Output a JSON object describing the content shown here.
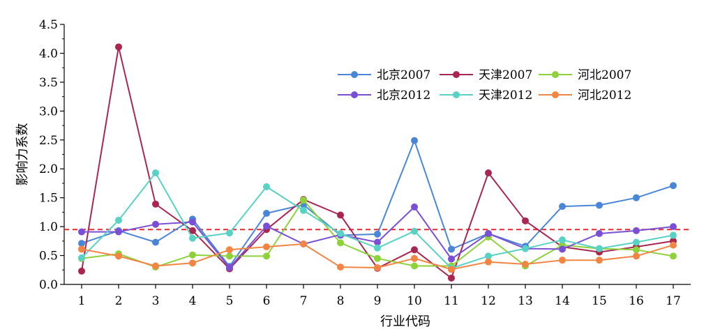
{
  "chart_data": {
    "type": "line",
    "xlabel": "行业代码",
    "ylabel": "影响力系数",
    "ylim": [
      0,
      4.5
    ],
    "y_ticks": [
      "0.0",
      "0.5",
      "1.0",
      "1.5",
      "2.0",
      "2.5",
      "3.0",
      "3.5",
      "4.0",
      "4.5"
    ],
    "x": [
      1,
      2,
      3,
      4,
      5,
      6,
      7,
      8,
      9,
      10,
      11,
      12,
      13,
      14,
      15,
      16,
      17
    ],
    "x_ticks": [
      "1",
      "2",
      "3",
      "4",
      "5",
      "6",
      "7",
      "8",
      "9",
      "10",
      "11",
      "12",
      "13",
      "14",
      "15",
      "16",
      "17"
    ],
    "reference_line": {
      "y": 0.95,
      "color": "#e8282b",
      "style": "dashed"
    },
    "legend_position": "top-right",
    "grid": false,
    "series": [
      {
        "name": "北京2007",
        "color": "#4a86d8",
        "values": [
          0.71,
          0.93,
          0.73,
          1.13,
          0.31,
          1.23,
          1.38,
          0.85,
          0.87,
          2.49,
          0.61,
          0.88,
          0.66,
          1.35,
          1.37,
          1.5,
          1.71
        ]
      },
      {
        "name": "天津2007",
        "color": "#a8264f",
        "values": [
          0.23,
          4.11,
          1.39,
          0.93,
          0.27,
          0.95,
          1.47,
          1.2,
          0.28,
          0.6,
          0.11,
          1.93,
          1.1,
          0.65,
          0.56,
          0.65,
          0.75
        ]
      },
      {
        "name": "河北2007",
        "color": "#8ed23b",
        "values": [
          0.45,
          0.53,
          0.3,
          0.51,
          0.49,
          0.49,
          1.46,
          0.72,
          0.45,
          0.32,
          0.32,
          0.82,
          0.32,
          0.68,
          0.62,
          0.6,
          0.49
        ]
      },
      {
        "name": "北京2012",
        "color": "#7a4fd6",
        "values": [
          0.91,
          0.91,
          1.04,
          1.08,
          0.29,
          1.01,
          0.7,
          0.86,
          0.73,
          1.34,
          0.44,
          0.88,
          0.62,
          0.61,
          0.88,
          0.93,
          1.0
        ]
      },
      {
        "name": "天津2012",
        "color": "#58d2c4",
        "values": [
          0.46,
          1.11,
          1.93,
          0.8,
          0.89,
          1.69,
          1.28,
          0.88,
          0.63,
          0.92,
          0.28,
          0.49,
          0.62,
          0.77,
          0.62,
          0.73,
          0.85
        ]
      },
      {
        "name": "河北2012",
        "color": "#f28544",
        "values": [
          0.61,
          0.49,
          0.32,
          0.37,
          0.6,
          0.65,
          0.7,
          0.3,
          0.29,
          0.45,
          0.26,
          0.39,
          0.35,
          0.42,
          0.42,
          0.49,
          0.68
        ]
      }
    ]
  }
}
